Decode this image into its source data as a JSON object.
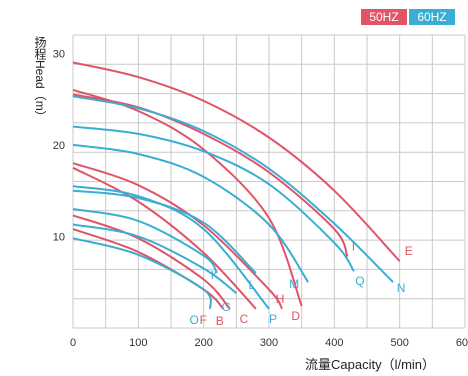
{
  "chart_data": {
    "type": "line",
    "ylabel": "扬程Head（m）",
    "xlabel": "流量Capacity（l/min）",
    "xlim": [
      0,
      600
    ],
    "ylim": [
      0,
      32
    ],
    "xticks": [
      "0",
      "100",
      "200",
      "300",
      "400",
      "500",
      "600"
    ],
    "yticks": [
      "10",
      "20",
      "30"
    ],
    "grid": true,
    "legend": {
      "position": "top-right",
      "items": [
        {
          "label": "50HZ",
          "color": "#e05468"
        },
        {
          "label": "60HZ",
          "color": "#3aaed2"
        }
      ]
    },
    "series": [
      {
        "name": "E",
        "frequency": "50HZ",
        "color": "#e05468",
        "x": [
          0,
          100,
          200,
          300,
          400,
          500
        ],
        "y": [
          29,
          27.4,
          24.8,
          20.8,
          15,
          7.3
        ]
      },
      {
        "name": "I",
        "frequency": "50HZ",
        "color": "#e05468",
        "x": [
          0,
          100,
          200,
          300,
          400,
          420
        ],
        "y": [
          25.5,
          24.1,
          21.2,
          17,
          10.8,
          7.8
        ]
      },
      {
        "name": "D",
        "frequency": "50HZ",
        "color": "#e05468",
        "x": [
          0,
          100,
          200,
          300,
          350
        ],
        "y": [
          26,
          23.7,
          19.5,
          12,
          2.4
        ]
      },
      {
        "name": "H",
        "frequency": "50HZ",
        "color": "#e05468",
        "x": [
          0,
          100,
          200,
          300,
          320
        ],
        "y": [
          18,
          15.6,
          11.2,
          4.2,
          2.1
        ]
      },
      {
        "name": "C",
        "frequency": "50HZ",
        "color": "#e05468",
        "x": [
          0,
          100,
          200,
          280
        ],
        "y": [
          17.5,
          13.8,
          8.2,
          2.1
        ]
      },
      {
        "name": "B",
        "frequency": "50HZ",
        "color": "#e05468",
        "x": [
          0,
          100,
          200,
          240
        ],
        "y": [
          12.3,
          9.8,
          5.3,
          2.1
        ]
      },
      {
        "name": "F",
        "frequency": "50HZ",
        "color": "#e05468",
        "x": [
          0,
          100,
          200,
          230
        ],
        "y": [
          10.8,
          8.3,
          4.2,
          2.1
        ]
      },
      {
        "name": "N",
        "frequency": "60HZ",
        "color": "#3aaed2",
        "x": [
          0,
          100,
          200,
          300,
          400,
          490
        ],
        "y": [
          25.3,
          24,
          21.5,
          17.4,
          11.4,
          5
        ]
      },
      {
        "name": "Q",
        "frequency": "60HZ",
        "color": "#3aaed2",
        "x": [
          0,
          100,
          200,
          300,
          400,
          430
        ],
        "y": [
          22,
          21.2,
          19.3,
          15.7,
          9.3,
          6.2
        ]
      },
      {
        "name": "M",
        "frequency": "60HZ",
        "color": "#3aaed2",
        "x": [
          0,
          100,
          200,
          300,
          360
        ],
        "y": [
          20,
          19,
          16.5,
          11.3,
          5
        ]
      },
      {
        "name": "L",
        "frequency": "60HZ",
        "color": "#3aaed2",
        "x": [
          0,
          100,
          200,
          280
        ],
        "y": [
          15,
          14.2,
          11.5,
          6
        ]
      },
      {
        "name": "P",
        "frequency": "60HZ",
        "color": "#3aaed2",
        "x": [
          0,
          100,
          200,
          300
        ],
        "y": [
          15.5,
          14.4,
          10.8,
          2.1
        ]
      },
      {
        "name": "K",
        "frequency": "60HZ",
        "color": "#3aaed2",
        "x": [
          0,
          100,
          200,
          220
        ],
        "y": [
          13,
          11.7,
          7.9,
          6
        ]
      },
      {
        "name": "G",
        "frequency": "60HZ",
        "color": "#3aaed2",
        "x": [
          0,
          100,
          200,
          250
        ],
        "y": [
          11.3,
          10,
          6.5,
          3.8
        ]
      },
      {
        "name": "O",
        "frequency": "60HZ",
        "color": "#3aaed2",
        "x": [
          0,
          100,
          200,
          210
        ],
        "y": [
          9.8,
          8,
          4.2,
          2.1
        ]
      }
    ]
  }
}
